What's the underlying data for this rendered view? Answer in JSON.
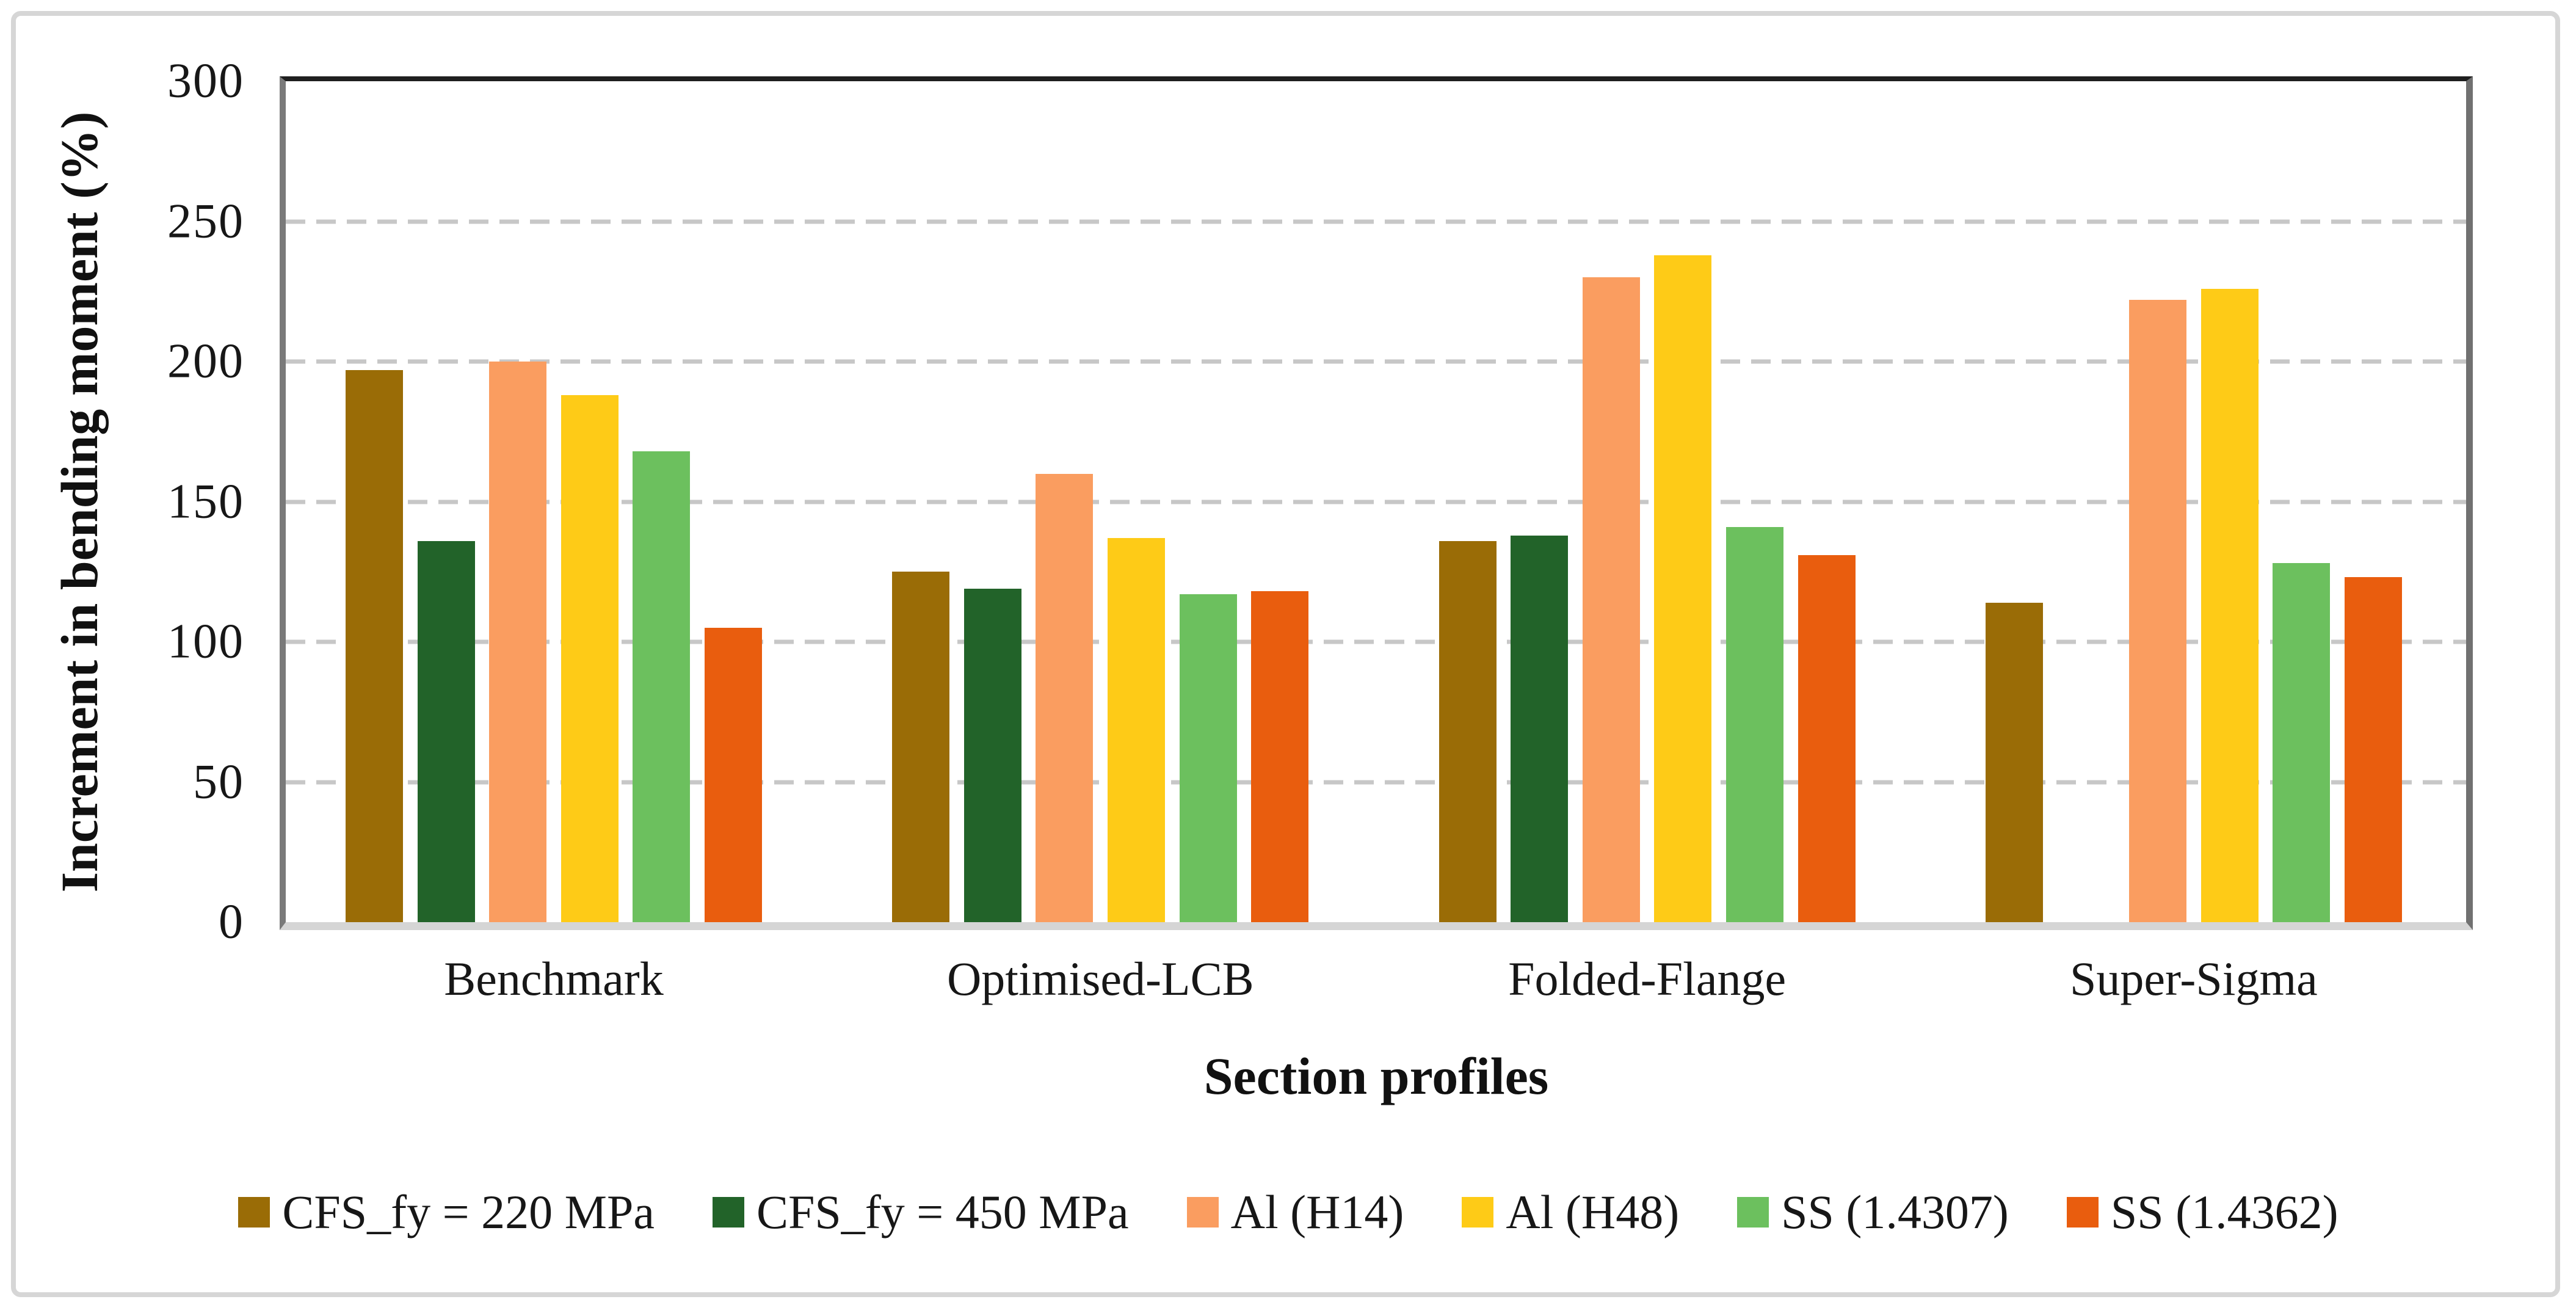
{
  "figure": {
    "background": "#ffffff",
    "frame_border_color": "#d6d6d6",
    "plot_border_top_color": "#1f1f1f",
    "plot_border_side_color": "#7a7a7a",
    "baseline_color": "#d5d5d5",
    "gridline_color": "#c7c7c7"
  },
  "chart_data": {
    "type": "bar",
    "title": "",
    "xlabel": "Section profiles",
    "ylabel": "Increment in bending moment (%)",
    "ylim": [
      0,
      300
    ],
    "ytick_step": 50,
    "yticks": [
      300,
      250,
      200,
      150,
      100,
      50,
      0
    ],
    "grid": "horizontal-dashed",
    "legend_position": "bottom",
    "categories": [
      "Benchmark",
      "Optimised-LCB",
      "Folded-Flange",
      "Super-Sigma"
    ],
    "series": [
      {
        "name": "CFS_fy = 220 MPa",
        "color": "#9A6C06",
        "values": [
          197,
          125,
          136,
          114
        ]
      },
      {
        "name": "CFS_fy = 450 MPa",
        "color": "#226329",
        "values": [
          136,
          119,
          138,
          null
        ]
      },
      {
        "name": "Al (H14)",
        "color": "#FA9D60",
        "values": [
          200,
          160,
          230,
          222
        ]
      },
      {
        "name": "Al (H48)",
        "color": "#FECB17",
        "values": [
          188,
          137,
          238,
          226
        ]
      },
      {
        "name": "SS (1.4307)",
        "color": "#6CC05E",
        "values": [
          168,
          117,
          141,
          128
        ]
      },
      {
        "name": "SS (1.4362)",
        "color": "#E95D0E",
        "values": [
          105,
          118,
          131,
          123
        ]
      }
    ]
  }
}
